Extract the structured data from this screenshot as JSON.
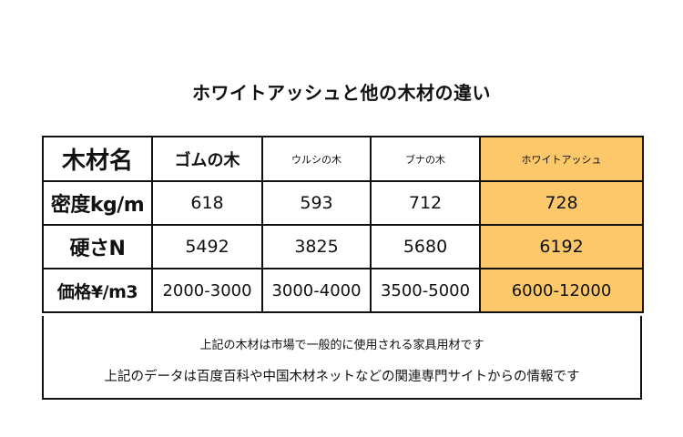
{
  "title": "ホワイトアッシュと他の木材の違い",
  "table": {
    "headers": [
      "木材名",
      "ゴムの木",
      "ウルシの木",
      "ブナの木",
      "ホワイトアッシュ"
    ],
    "rows": [
      {
        "label": "密度kg/m",
        "values": [
          "618",
          "593",
          "712",
          "728"
        ]
      },
      {
        "label": "硬さN",
        "values": [
          "5492",
          "3825",
          "5680",
          "6192"
        ]
      },
      {
        "label": "価格¥/m3",
        "values": [
          "2000-3000",
          "3000-4000",
          "3500-5000",
          "6000-12000"
        ]
      }
    ],
    "highlight_color": "#fcc86a"
  },
  "notes": [
    "上記の木材は市場で一般的に使用される家具用材です",
    "上記のデータは百度百科や中国木材ネットなどの関連専門サイトからの情報です"
  ]
}
